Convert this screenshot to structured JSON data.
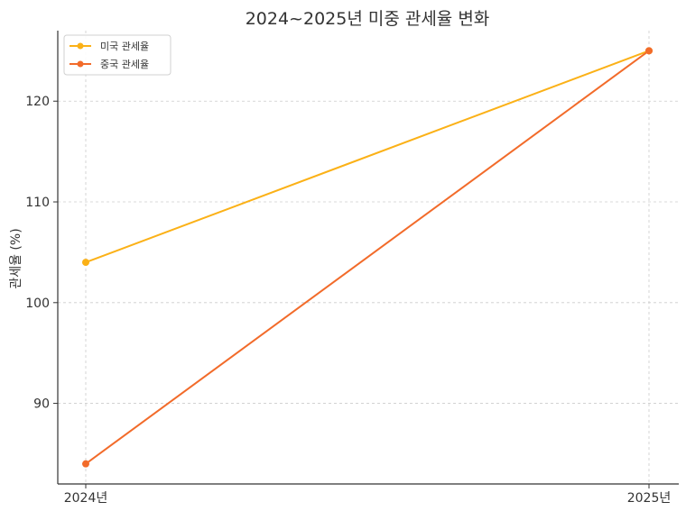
{
  "chart_data": {
    "type": "line",
    "title": "2024~2025년 미중 관세율 변화",
    "xlabel": "",
    "ylabel": "관세율 (%)",
    "categories": [
      "2024년",
      "2025년"
    ],
    "series": [
      {
        "name": "미국 관세율",
        "values": [
          104,
          125
        ],
        "color": "#fbb117"
      },
      {
        "name": "중국 관세율",
        "values": [
          84,
          125
        ],
        "color": "#f26b2a"
      }
    ],
    "ylim": [
      82,
      127
    ],
    "yticks": [
      90,
      100,
      110,
      120
    ],
    "grid": true,
    "legend_position": "top-left"
  }
}
